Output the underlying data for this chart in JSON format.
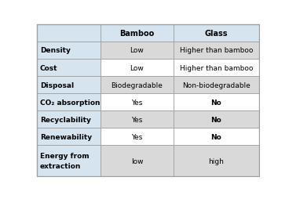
{
  "header_row": [
    "",
    "Bamboo",
    "Glass"
  ],
  "rows": [
    [
      "Density",
      "Low",
      "Higher than bamboo"
    ],
    [
      "Cost",
      "Low",
      "Higher than bamboo"
    ],
    [
      "Disposal",
      "Biodegradable",
      "Non-biodegradable"
    ],
    [
      "CO₂ absorption",
      "Yes",
      "No"
    ],
    [
      "Recyclability",
      "Yes",
      "No"
    ],
    [
      "Renewability",
      "Yes",
      "No"
    ],
    [
      "Energy from\nextraction",
      "low",
      "high"
    ]
  ],
  "col_weights": [
    0.285,
    0.33,
    0.385
  ],
  "row_heights_rel": [
    1.0,
    1.0,
    1.0,
    1.0,
    1.0,
    1.0,
    1.8
  ],
  "header_bg": "#d6e4f0",
  "label_col_bg": "#d6e4f0",
  "cell_gray": "#d9d9d9",
  "cell_white": "#ffffff",
  "border_color": "#a0a0a0",
  "header_fontsize": 7.0,
  "cell_fontsize": 6.5,
  "label_fontsize": 6.5,
  "figsize": [
    3.68,
    2.55
  ],
  "dpi": 100,
  "cell_colors": [
    [
      "#d6e4f0",
      "#d9d9d9",
      "#d9d9d9"
    ],
    [
      "#d6e4f0",
      "#ffffff",
      "#ffffff"
    ],
    [
      "#d6e4f0",
      "#d9d9d9",
      "#d9d9d9"
    ],
    [
      "#d6e4f0",
      "#ffffff",
      "#ffffff"
    ],
    [
      "#d6e4f0",
      "#d9d9d9",
      "#d9d9d9"
    ],
    [
      "#d6e4f0",
      "#ffffff",
      "#ffffff"
    ],
    [
      "#d6e4f0",
      "#d9d9d9",
      "#d9d9d9"
    ]
  ],
  "bold_cells": [
    [
      true,
      false,
      false
    ],
    [
      true,
      false,
      false
    ],
    [
      true,
      false,
      false
    ],
    [
      true,
      false,
      true
    ],
    [
      true,
      false,
      true
    ],
    [
      true,
      false,
      true
    ],
    [
      true,
      false,
      false
    ]
  ]
}
